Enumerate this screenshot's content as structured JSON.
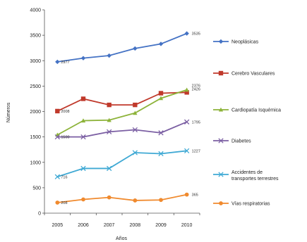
{
  "chart_data": {
    "type": "line",
    "title": "",
    "xlabel": "Años",
    "ylabel": "Números",
    "ylim": [
      0,
      4000
    ],
    "yticks": [
      "0",
      "500",
      "1000",
      "1500",
      "2000",
      "2500",
      "3000",
      "3500",
      "4000"
    ],
    "categories": [
      "2005",
      "2006",
      "2007",
      "2008",
      "2009",
      "2010"
    ],
    "grid": false,
    "legend_position": "right",
    "series": [
      {
        "name": "Neoplásicas",
        "color": "#4472C4",
        "marker": "diamond",
        "values": [
          2977,
          3050,
          3100,
          3240,
          3330,
          3535
        ],
        "labels": [
          "2977",
          "",
          "",
          "",
          "",
          "3535"
        ]
      },
      {
        "name": "Cerebro Vasculares",
        "color": "#C0392B",
        "marker": "square",
        "values": [
          2008,
          2250,
          2130,
          2130,
          2360,
          2376
        ],
        "labels": [
          "2008",
          "",
          "",
          "",
          "",
          "2376"
        ]
      },
      {
        "name": "Cardiopatía Isquémica",
        "color": "#8DB33A",
        "marker": "triangle",
        "values": [
          1540,
          1820,
          1830,
          1970,
          2260,
          2426
        ],
        "labels": [
          "",
          "",
          "",
          "",
          "",
          "2426"
        ]
      },
      {
        "name": "Diabetes",
        "color": "#7B5FA3",
        "marker": "x",
        "values": [
          1500,
          1500,
          1600,
          1640,
          1580,
          1795
        ],
        "labels": [
          "1500",
          "",
          "",
          "",
          "",
          "1795"
        ]
      },
      {
        "name": "Accidentes de transportes terrestres",
        "color": "#3FA9D4",
        "marker": "x",
        "values": [
          716,
          880,
          880,
          1190,
          1170,
          1227
        ],
        "labels": [
          "716",
          "",
          "",
          "",
          "",
          "1227"
        ]
      },
      {
        "name": "Vías respiratorias",
        "color": "#F08A2E",
        "marker": "circle",
        "values": [
          208,
          270,
          310,
          250,
          260,
          365
        ],
        "labels": [
          "208",
          "",
          "",
          "",
          "",
          "365"
        ]
      }
    ]
  }
}
